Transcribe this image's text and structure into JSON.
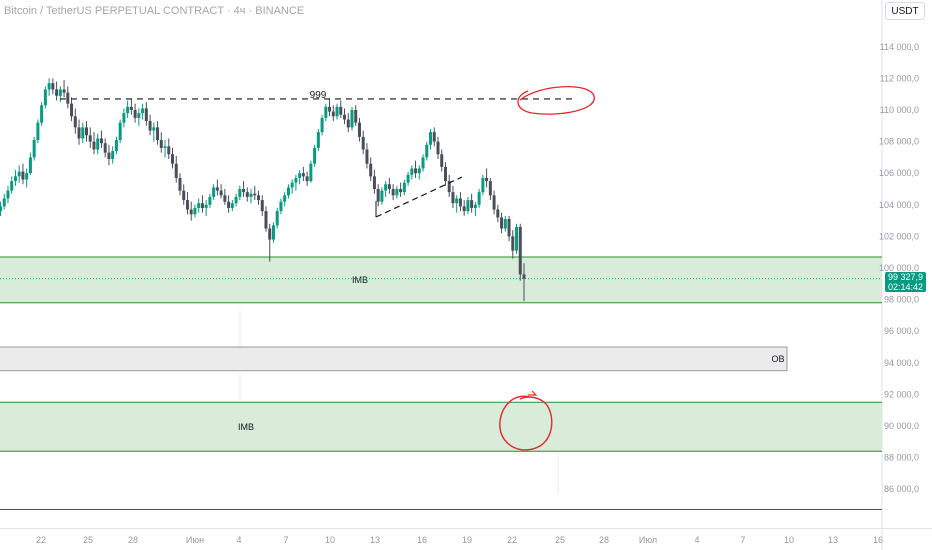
{
  "header": {
    "title": "Bitcoin / TetherUS PERPETUAL CONTRACT · 4ч · BINANCE",
    "currency": "USDT"
  },
  "price_tag": {
    "price": "99 327,9",
    "countdown": "02:14:42"
  },
  "colors": {
    "bull": "#089981",
    "bear": "#4a4e59",
    "zone_fill": "#d8ecd9",
    "zone_line": "#2e8b2e",
    "ob_fill": "#ebebeb",
    "marker": "#e0282e"
  },
  "chart_data": {
    "type": "candlestick",
    "y_axis": {
      "ticks": [
        "114 000,0",
        "112 000,0",
        "110 000,0",
        "108 000,0",
        "106 000,0",
        "104 000,0",
        "102 000,0",
        "100 000,0",
        "98 000,0",
        "96 000,0",
        "94 000,0",
        "92 000,0",
        "90 000,0",
        "88 000,0",
        "86 000,0"
      ],
      "ylim": [
        85000,
        114800
      ]
    },
    "x_axis": {
      "ticks": [
        "22",
        "25",
        "28",
        "Июн",
        "4",
        "7",
        "10",
        "13",
        "16",
        "19",
        "22",
        "25",
        "28",
        "Июл",
        "4",
        "7",
        "10",
        "13",
        "16"
      ]
    },
    "close_line": 99327.9,
    "levels": [
      {
        "label": "999",
        "price": 110700,
        "style": "dashed"
      }
    ],
    "zones": [
      {
        "label": "IMB",
        "top": 100700,
        "bottom": 97800,
        "type": "imbalance"
      },
      {
        "label": "OB",
        "top": 95000,
        "bottom": 93500,
        "type": "order-block"
      },
      {
        "label": "IMB",
        "top": 91500,
        "bottom": 88400,
        "type": "imbalance"
      }
    ],
    "series": [
      {
        "ohlc": [
          [
            103600,
            104200,
            103300,
            103900
          ],
          [
            103900,
            104700,
            103700,
            104400
          ],
          [
            104400,
            105200,
            104100,
            104900
          ],
          [
            104900,
            105800,
            104700,
            105500
          ],
          [
            105500,
            106200,
            105200,
            105800
          ],
          [
            105800,
            106500,
            105400,
            106100
          ],
          [
            106100,
            106600,
            105300,
            105600
          ],
          [
            105600,
            106300,
            105100,
            106000
          ],
          [
            106000,
            107300,
            105900,
            107000
          ],
          [
            107000,
            108300,
            106800,
            108100
          ],
          [
            108100,
            109400,
            107900,
            109200
          ],
          [
            109200,
            110500,
            109000,
            110300
          ],
          [
            110300,
            111500,
            110100,
            111300
          ],
          [
            111300,
            112000,
            110900,
            111700
          ],
          [
            111700,
            112000,
            111000,
            111300
          ],
          [
            111300,
            111800,
            110600,
            110900
          ],
          [
            110900,
            111500,
            110500,
            111300
          ],
          [
            111300,
            111900,
            110800,
            111100
          ],
          [
            111100,
            111500,
            110100,
            110400
          ],
          [
            110400,
            110800,
            109300,
            109600
          ],
          [
            109600,
            110100,
            108500,
            108900
          ],
          [
            108900,
            109400,
            107800,
            108200
          ],
          [
            108200,
            109200,
            107900,
            108900
          ],
          [
            108900,
            109300,
            108000,
            108400
          ],
          [
            108400,
            108900,
            107600,
            108000
          ],
          [
            108000,
            108600,
            107200,
            107500
          ],
          [
            107500,
            108500,
            107200,
            108200
          ],
          [
            108200,
            108700,
            107600,
            107900
          ],
          [
            107900,
            108200,
            107000,
            107300
          ],
          [
            107300,
            107800,
            106500,
            106900
          ],
          [
            106900,
            107700,
            106600,
            107400
          ],
          [
            107400,
            108300,
            107200,
            108100
          ],
          [
            108100,
            109400,
            107900,
            109200
          ],
          [
            109200,
            110100,
            108900,
            109800
          ],
          [
            109800,
            110600,
            109500,
            110200
          ],
          [
            110200,
            110700,
            109700,
            110000
          ],
          [
            110000,
            110400,
            109200,
            109500
          ],
          [
            109500,
            110100,
            109000,
            109800
          ],
          [
            109800,
            110400,
            109400,
            110100
          ],
          [
            110100,
            110500,
            109000,
            109300
          ],
          [
            109300,
            109700,
            108400,
            108700
          ],
          [
            108700,
            109200,
            108000,
            108900
          ],
          [
            108900,
            109300,
            107800,
            108100
          ],
          [
            108100,
            108600,
            107300,
            107600
          ],
          [
            107600,
            108100,
            107000,
            107700
          ],
          [
            107700,
            108200,
            106900,
            107200
          ],
          [
            107200,
            107600,
            106300,
            106600
          ],
          [
            106600,
            107100,
            105400,
            105700
          ],
          [
            105700,
            106000,
            104600,
            104900
          ],
          [
            104900,
            105300,
            104000,
            104300
          ],
          [
            104300,
            104800,
            103400,
            103700
          ],
          [
            103700,
            104200,
            103000,
            103400
          ],
          [
            103400,
            104000,
            103200,
            103800
          ],
          [
            103800,
            104400,
            103500,
            104100
          ],
          [
            104100,
            104600,
            103500,
            103800
          ],
          [
            103800,
            104300,
            103300,
            104000
          ],
          [
            104000,
            104700,
            103800,
            104500
          ],
          [
            104500,
            105300,
            104300,
            105100
          ],
          [
            105100,
            105600,
            104600,
            104900
          ],
          [
            104900,
            105300,
            104400,
            104600
          ],
          [
            104600,
            105000,
            104000,
            104200
          ],
          [
            104200,
            104600,
            103500,
            103800
          ],
          [
            103800,
            104300,
            103600,
            104100
          ],
          [
            104100,
            104700,
            103900,
            104500
          ],
          [
            104500,
            105200,
            104300,
            105000
          ],
          [
            105000,
            105500,
            104500,
            104800
          ],
          [
            104800,
            105100,
            104200,
            104500
          ],
          [
            104500,
            105000,
            104100,
            104700
          ],
          [
            104700,
            105200,
            104300,
            104600
          ],
          [
            104600,
            104900,
            104000,
            104300
          ],
          [
            104300,
            104600,
            103300,
            103600
          ],
          [
            103600,
            103900,
            102300,
            102500
          ],
          [
            102500,
            102800,
            100400,
            101800
          ],
          [
            101800,
            102900,
            101600,
            102700
          ],
          [
            102700,
            103800,
            102500,
            103600
          ],
          [
            103600,
            104400,
            103400,
            104200
          ],
          [
            104200,
            104800,
            103900,
            104600
          ],
          [
            104600,
            105300,
            104400,
            105100
          ],
          [
            105100,
            105600,
            104700,
            105400
          ],
          [
            105400,
            105900,
            104900,
            105700
          ],
          [
            105700,
            106200,
            105300,
            106000
          ],
          [
            106000,
            106400,
            105500,
            105800
          ],
          [
            105800,
            106100,
            105200,
            105500
          ],
          [
            105500,
            106800,
            105400,
            106600
          ],
          [
            106600,
            107800,
            106400,
            107600
          ],
          [
            107600,
            108800,
            107400,
            108600
          ],
          [
            108600,
            109700,
            108400,
            109500
          ],
          [
            109500,
            110400,
            109300,
            110200
          ],
          [
            110200,
            110700,
            109600,
            109900
          ],
          [
            109900,
            110300,
            109300,
            109600
          ],
          [
            109600,
            110400,
            109400,
            110200
          ],
          [
            110200,
            110600,
            109500,
            109700
          ],
          [
            109700,
            110100,
            109100,
            109400
          ],
          [
            109400,
            109800,
            108600,
            108900
          ],
          [
            108900,
            110200,
            108700,
            110000
          ],
          [
            110000,
            110300,
            109000,
            109200
          ],
          [
            109200,
            109500,
            108000,
            108300
          ],
          [
            108300,
            108700,
            107200,
            107500
          ],
          [
            107500,
            107900,
            106300,
            106600
          ],
          [
            106600,
            107000,
            105500,
            105800
          ],
          [
            105800,
            106200,
            104700,
            105000
          ],
          [
            105000,
            105300,
            103900,
            104200
          ],
          [
            104200,
            105100,
            104000,
            104900
          ],
          [
            104900,
            105500,
            104500,
            105300
          ],
          [
            105300,
            105700,
            104700,
            105000
          ],
          [
            105000,
            105300,
            104300,
            104600
          ],
          [
            104600,
            105200,
            104400,
            105000
          ],
          [
            105000,
            105400,
            104500,
            104800
          ],
          [
            104800,
            105600,
            104600,
            105400
          ],
          [
            105400,
            106100,
            105200,
            105900
          ],
          [
            105900,
            106500,
            105600,
            106300
          ],
          [
            106300,
            106800,
            105700,
            106000
          ],
          [
            106000,
            106500,
            105600,
            106300
          ],
          [
            106300,
            107200,
            106100,
            107000
          ],
          [
            107000,
            108000,
            106800,
            107800
          ],
          [
            107800,
            108800,
            107500,
            108600
          ],
          [
            108600,
            108900,
            107700,
            108000
          ],
          [
            108000,
            108300,
            106900,
            107200
          ],
          [
            107200,
            107500,
            106100,
            106400
          ],
          [
            106400,
            106700,
            105200,
            105500
          ],
          [
            105500,
            105900,
            104500,
            104800
          ],
          [
            104800,
            105200,
            103800,
            104100
          ],
          [
            104100,
            104600,
            103500,
            104400
          ],
          [
            104400,
            104800,
            103600,
            103900
          ],
          [
            103900,
            104300,
            103300,
            103600
          ],
          [
            103600,
            104500,
            103400,
            104300
          ],
          [
            104300,
            104700,
            103500,
            103800
          ],
          [
            103800,
            104200,
            103300,
            104000
          ],
          [
            104000,
            105000,
            103800,
            104800
          ],
          [
            104800,
            105900,
            104600,
            105700
          ],
          [
            105700,
            106300,
            105100,
            105500
          ],
          [
            105500,
            105700,
            104300,
            104600
          ],
          [
            104600,
            104900,
            103400,
            103700
          ],
          [
            103700,
            104000,
            102900,
            103200
          ],
          [
            103200,
            103500,
            102200,
            102500
          ],
          [
            102500,
            103300,
            102300,
            103100
          ],
          [
            103100,
            103300,
            101700,
            102000
          ],
          [
            102000,
            102400,
            100600,
            101100
          ],
          [
            101100,
            102800,
            100900,
            102600
          ],
          [
            102600,
            102800,
            99200,
            99600
          ],
          [
            99600,
            100300,
            97900,
            99328
          ]
        ]
      }
    ]
  }
}
